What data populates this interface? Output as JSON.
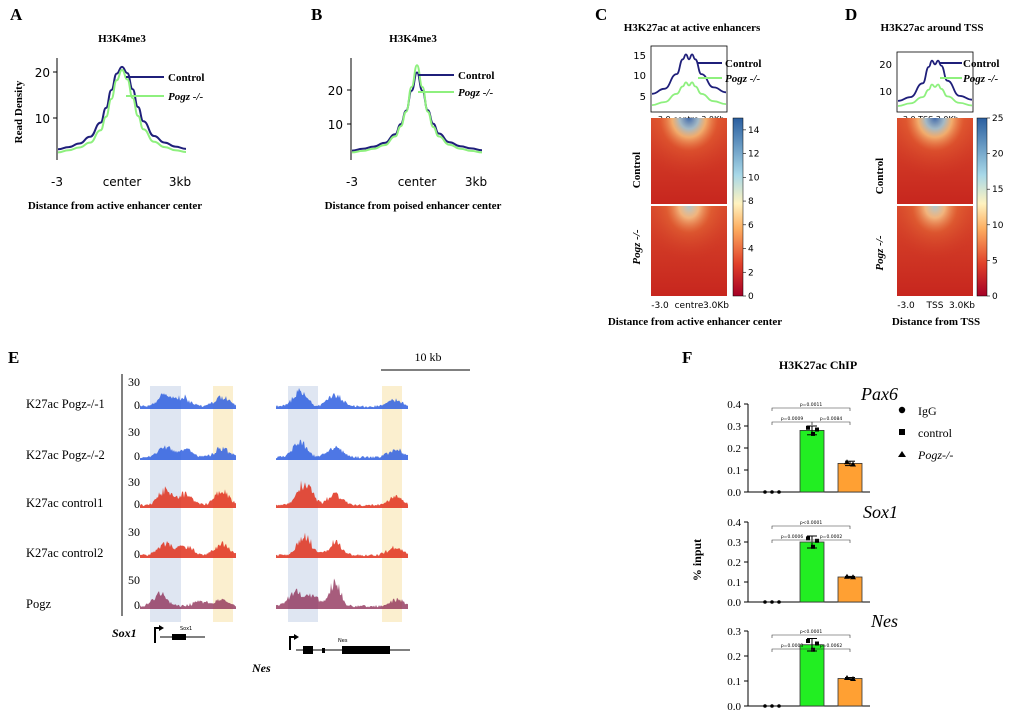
{
  "colors": {
    "control": "#1f1f7a",
    "pogz": "#8ef07e",
    "track_blue": "#2f5fe0",
    "track_red": "#e0301c",
    "track_pogz": "#8a2650",
    "highlight_blue": "#dfe6f2",
    "highlight_yellow": "#fbefcf",
    "bar_control": "#22ee22",
    "bar_pogz": "#ffa033"
  },
  "panel_letters": [
    "A",
    "B",
    "C",
    "D",
    "E",
    "F"
  ],
  "panelA": {
    "title": "H3K4me3",
    "ylabel": "Read Density",
    "yticks": [
      "20",
      "10"
    ],
    "xticks": [
      "-3",
      "center",
      "3kb"
    ],
    "xlabel": "Distance from active enhancer center",
    "legend": [
      "Control",
      "Pogz -/-"
    ]
  },
  "panelB": {
    "title": "H3K4me3",
    "yticks": [
      "20",
      "10"
    ],
    "xticks": [
      "-3",
      "center",
      "3kb"
    ],
    "xlabel": "Distance from poised enhancer center",
    "legend": [
      "Control",
      "Pogz -/-"
    ]
  },
  "panelC": {
    "title": "H3K27ac at active enhancers",
    "profile_yticks": [
      "15",
      "10",
      "5"
    ],
    "profile_xticks": "-3.0   centre 3.0Kb",
    "row_labels": [
      "Control",
      "Pogz -/-"
    ],
    "heat_xticks": [
      "-3.0",
      "centre",
      "3.0Kb"
    ],
    "colorbar_ticks": [
      "14",
      "12",
      "10",
      "8",
      "6",
      "4",
      "2",
      "0"
    ],
    "xlabel": "Distance from active enhancer center",
    "legend": [
      "Control",
      "Pogz -/-"
    ]
  },
  "panelD": {
    "title": "H3K27ac around TSS",
    "profile_yticks": [
      "20",
      "10"
    ],
    "profile_xticks": "-3.0   TSS  3.0Kb",
    "row_labels": [
      "Control",
      "Pogz -/-"
    ],
    "heat_xticks": [
      "-3.0",
      "TSS",
      "3.0Kb"
    ],
    "colorbar_ticks": [
      "25",
      "20",
      "15",
      "10",
      "5",
      "0"
    ],
    "xlabel": "Distance from TSS",
    "legend": [
      "Control",
      "Pogz -/-"
    ]
  },
  "panelE": {
    "scale_label": "10 kb",
    "tracks": [
      {
        "label": "K27ac Pogz-/-1",
        "max": "30",
        "zero": "0"
      },
      {
        "label": "K27ac Pogz-/-2",
        "max": "30",
        "zero": "0"
      },
      {
        "label": "K27ac control1",
        "max": "30",
        "zero": "0"
      },
      {
        "label": "K27ac control2",
        "max": "30",
        "zero": "0"
      },
      {
        "label": "Pogz",
        "max": "50",
        "zero": "0"
      }
    ],
    "genes": [
      {
        "name": "Sox1",
        "small_label": "Sox1"
      },
      {
        "name": "Nes",
        "small_label": "Nes"
      }
    ]
  },
  "chart_data": [
    {
      "type": "line",
      "panel": "A",
      "title": "H3K4me3",
      "xlabel": "Distance from active enhancer center",
      "ylabel": "Read Density",
      "x": [
        -3,
        -2.5,
        -2,
        -1.5,
        -1,
        -0.75,
        -0.5,
        -0.25,
        0,
        0.25,
        0.5,
        0.75,
        1,
        1.5,
        2,
        2.5,
        3
      ],
      "series": [
        {
          "name": "Control",
          "values": [
            3.5,
            4.0,
            4.8,
            6.3,
            9.5,
            12.8,
            16.8,
            20.5,
            22.0,
            20.6,
            17.0,
            13.0,
            9.8,
            6.5,
            5.0,
            4.1,
            3.6
          ]
        },
        {
          "name": "Pogz -/-",
          "values": [
            2.8,
            3.3,
            3.9,
            5.0,
            7.8,
            10.8,
            14.8,
            19.0,
            21.3,
            19.2,
            15.0,
            11.0,
            8.0,
            5.2,
            4.0,
            3.3,
            2.9
          ]
        }
      ],
      "ylim": [
        2,
        24
      ]
    },
    {
      "type": "line",
      "panel": "B",
      "title": "H3K4me3",
      "xlabel": "Distance from poised enhancer center",
      "x": [
        -3,
        -2.5,
        -2,
        -1.5,
        -1,
        -0.75,
        -0.5,
        -0.25,
        0,
        0.25,
        0.5,
        0.75,
        1,
        1.5,
        2,
        2.5,
        3
      ],
      "series": [
        {
          "name": "Control",
          "values": [
            4.5,
            5.0,
            5.6,
            6.6,
            9.0,
            11.8,
            15.5,
            21.0,
            26.0,
            21.0,
            15.6,
            11.9,
            9.2,
            6.8,
            5.7,
            5.1,
            4.6
          ]
        },
        {
          "name": "Pogz -/-",
          "values": [
            4.0,
            4.4,
            5.0,
            6.0,
            8.4,
            11.2,
            15.2,
            22.0,
            28.0,
            22.0,
            15.2,
            11.0,
            8.4,
            6.1,
            5.0,
            4.4,
            4.0
          ]
        }
      ],
      "ylim": [
        3,
        30
      ]
    },
    {
      "type": "heatmap",
      "panel": "C",
      "title": "H3K27ac at active enhancers",
      "xlabel": "Distance from active enhancer center",
      "profile": {
        "x": [
          -3,
          -2,
          -1,
          -0.5,
          -0.25,
          0,
          0.25,
          0.5,
          1,
          2,
          3
        ],
        "series": [
          {
            "name": "Control",
            "values": [
              6.5,
              7.5,
              10.5,
              13.5,
              14.5,
              13.5,
              14.5,
              13.5,
              10.5,
              7.8,
              6.8
            ]
          },
          {
            "name": "Pogz -/-",
            "values": [
              4.2,
              4.8,
              6.5,
              8.0,
              8.8,
              8.2,
              8.8,
              8.0,
              6.5,
              5.0,
              4.4
            ]
          }
        ],
        "ylim": [
          3,
          16
        ]
      },
      "colorbar_range": [
        0,
        15
      ]
    },
    {
      "type": "heatmap",
      "panel": "D",
      "title": "H3K27ac around TSS",
      "xlabel": "Distance from TSS",
      "profile": {
        "x": [
          -3,
          -2,
          -1,
          -0.5,
          -0.25,
          0,
          0.25,
          0.5,
          1,
          2,
          3
        ],
        "series": [
          {
            "name": "Control",
            "values": [
              6.0,
              7.5,
              13.0,
              19.5,
              22.0,
              20.5,
              22.0,
              20.0,
              14.0,
              8.0,
              6.5
            ]
          },
          {
            "name": "Pogz -/-",
            "values": [
              4.0,
              5.0,
              7.5,
              10.5,
              12.5,
              11.5,
              12.5,
              10.8,
              7.8,
              5.2,
              4.2
            ]
          }
        ],
        "ylim": [
          2,
          25
        ]
      },
      "colorbar_range": [
        0,
        25
      ]
    },
    {
      "type": "bar",
      "panel": "F",
      "title": "H3K27ac ChIP",
      "ylabel": "% input",
      "legend": [
        "IgG",
        "control",
        "Pogz-/-"
      ],
      "subplots": [
        {
          "gene": "Pax6",
          "categories": [
            "IgG",
            "control",
            "Pogz-/-"
          ],
          "values": [
            0.0,
            0.28,
            0.13
          ],
          "errors": [
            0.0,
            0.02,
            0.01
          ],
          "ylim": [
            0,
            0.4
          ],
          "yticks": [
            "0.4",
            "0.3",
            "0.2",
            "0.1",
            "0.0"
          ],
          "pvalues": [
            "p=0.0011",
            "p=0.0009",
            "p=0.0084"
          ]
        },
        {
          "gene": "Sox1",
          "categories": [
            "IgG",
            "control",
            "Pogz-/-"
          ],
          "values": [
            0.0,
            0.3,
            0.125
          ],
          "errors": [
            0.0,
            0.03,
            0.003
          ],
          "ylim": [
            0,
            0.4
          ],
          "yticks": [
            "0.4",
            "0.3",
            "0.2",
            "0.1",
            "0.0"
          ],
          "pvalues": [
            "p<0.0001",
            "p=0.0006",
            "p=0.0002"
          ]
        },
        {
          "gene": "Nes",
          "categories": [
            "IgG",
            "control",
            "Pogz-/-"
          ],
          "values": [
            0.0,
            0.245,
            0.11
          ],
          "errors": [
            0.0,
            0.025,
            0.004
          ],
          "ylim": [
            0,
            0.3
          ],
          "yticks": [
            "0.3",
            "0.2",
            "0.1",
            "0.0"
          ],
          "pvalues": [
            "p<0.0001",
            "p=0.0003",
            "p=0.0062"
          ]
        }
      ]
    }
  ]
}
